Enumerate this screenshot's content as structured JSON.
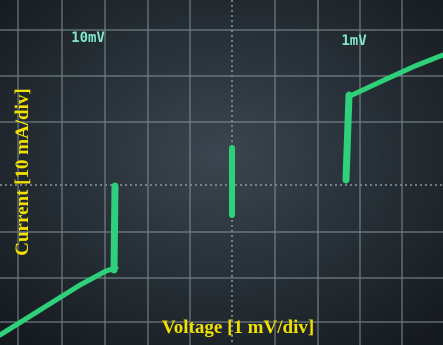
{
  "screen": {
    "top_left_label": "10mV",
    "top_right_label": "1mV"
  },
  "axes": {
    "y_label": "Current [10 mA/div]",
    "x_label": "Voltage [1 mV/div]"
  }
}
